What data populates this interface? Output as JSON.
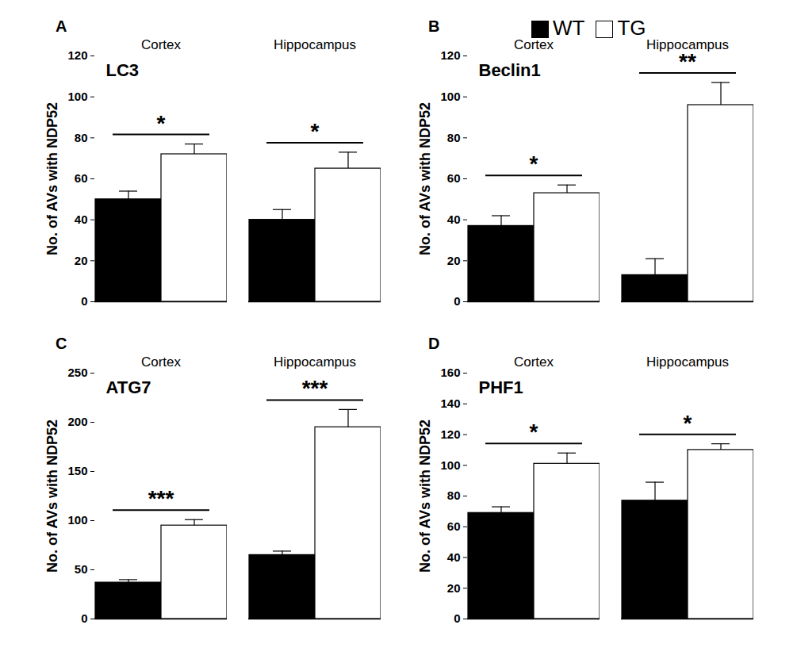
{
  "chart_data": [
    {
      "type": "bar",
      "panel_label": "A",
      "title": "LC3",
      "y_label": "No. of AVs with NDP52",
      "categories": [
        "Cortex",
        "Hippocampus"
      ],
      "series": [
        {
          "name": "WT",
          "color": "#000000",
          "values": [
            50,
            40
          ],
          "errors": [
            4,
            5
          ]
        },
        {
          "name": "TG",
          "color": "#ffffff",
          "values": [
            72,
            65
          ],
          "errors": [
            5,
            8
          ]
        }
      ],
      "significance": [
        {
          "category": "Cortex",
          "label": "*"
        },
        {
          "category": "Hippocampus",
          "label": "*"
        }
      ],
      "ylim": [
        0,
        120
      ],
      "yticks": [
        0,
        20,
        40,
        60,
        80,
        100,
        120
      ]
    },
    {
      "type": "bar",
      "panel_label": "B",
      "title": "Beclin1",
      "y_label": "No. of AVs with NDP52",
      "categories": [
        "Cortex",
        "Hippocampus"
      ],
      "series": [
        {
          "name": "WT",
          "color": "#000000",
          "values": [
            37,
            13
          ],
          "errors": [
            5,
            8
          ]
        },
        {
          "name": "TG",
          "color": "#ffffff",
          "values": [
            53,
            96
          ],
          "errors": [
            4,
            11
          ]
        }
      ],
      "significance": [
        {
          "category": "Cortex",
          "label": "*"
        },
        {
          "category": "Hippocampus",
          "label": "**"
        }
      ],
      "ylim": [
        0,
        120
      ],
      "yticks": [
        0,
        20,
        40,
        60,
        80,
        100,
        120
      ],
      "legend": "top-right"
    },
    {
      "type": "bar",
      "panel_label": "C",
      "title": "ATG7",
      "y_label": "No. of AVs with NDP52",
      "categories": [
        "Cortex",
        "Hippocampus"
      ],
      "series": [
        {
          "name": "WT",
          "color": "#000000",
          "values": [
            37,
            65
          ],
          "errors": [
            3,
            4
          ]
        },
        {
          "name": "TG",
          "color": "#ffffff",
          "values": [
            95,
            195
          ],
          "errors": [
            6,
            18
          ]
        }
      ],
      "significance": [
        {
          "category": "Cortex",
          "label": "***"
        },
        {
          "category": "Hippocampus",
          "label": "***"
        }
      ],
      "ylim": [
        0,
        250
      ],
      "yticks": [
        0,
        50,
        100,
        150,
        200,
        250
      ]
    },
    {
      "type": "bar",
      "panel_label": "D",
      "title": "PHF1",
      "y_label": "No. of AVs with NDP52",
      "categories": [
        "Cortex",
        "Hippocampus"
      ],
      "series": [
        {
          "name": "WT",
          "color": "#000000",
          "values": [
            69,
            77
          ],
          "errors": [
            4,
            12
          ]
        },
        {
          "name": "TG",
          "color": "#ffffff",
          "values": [
            101,
            110
          ],
          "errors": [
            7,
            4
          ]
        }
      ],
      "significance": [
        {
          "category": "Cortex",
          "label": "*"
        },
        {
          "category": "Hippocampus",
          "label": "*"
        }
      ],
      "ylim": [
        0,
        160
      ],
      "yticks": [
        0,
        20,
        40,
        60,
        80,
        100,
        120,
        140,
        160
      ]
    }
  ]
}
